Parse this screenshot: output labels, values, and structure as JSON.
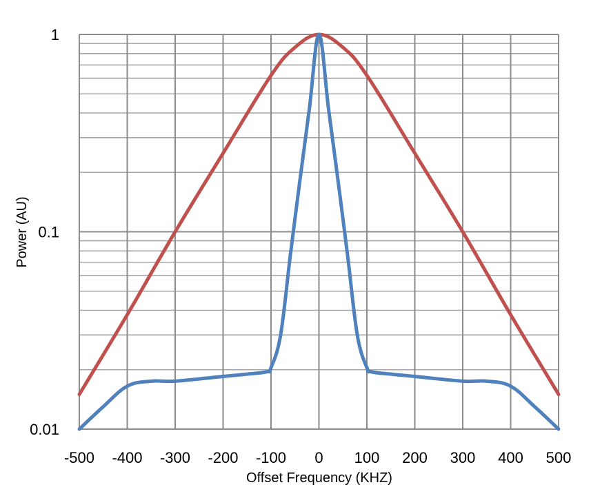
{
  "chart_data": {
    "type": "line",
    "title": "",
    "xlabel": "Offset Frequency (KHZ)",
    "ylabel": "Power (AU)",
    "xlim": [
      -500,
      500
    ],
    "ylim": [
      0.01,
      1
    ],
    "yscale": "log",
    "grid": true,
    "x_ticks": [
      "-500",
      "-400",
      "-300",
      "-200",
      "-100",
      "0",
      "100",
      "200",
      "300",
      "400",
      "500"
    ],
    "x_tick_values": [
      -500,
      -400,
      -300,
      -200,
      -100,
      0,
      100,
      200,
      300,
      400,
      500
    ],
    "y_ticks": [
      "0.01",
      "0.1",
      "1"
    ],
    "y_tick_values": [
      0.01,
      0.1,
      1
    ],
    "series": [
      {
        "color": "#c0504d",
        "x": [
          -500,
          -400,
          -300,
          -200,
          -100,
          -50,
          0,
          50,
          100,
          200,
          300,
          400,
          500
        ],
        "y": [
          0.015,
          0.038,
          0.1,
          0.25,
          0.62,
          0.86,
          1.0,
          0.86,
          0.62,
          0.25,
          0.1,
          0.038,
          0.015
        ]
      },
      {
        "color": "#4f81bd",
        "x": [
          -500,
          -450,
          -400,
          -350,
          -300,
          -200,
          -150,
          -110,
          -100,
          -80,
          -60,
          -40,
          -20,
          0,
          20,
          40,
          60,
          80,
          100,
          110,
          150,
          200,
          300,
          350,
          400,
          450,
          500
        ],
        "y": [
          0.01,
          0.013,
          0.0165,
          0.0175,
          0.0175,
          0.0185,
          0.019,
          0.0195,
          0.0205,
          0.03,
          0.075,
          0.18,
          0.42,
          1.0,
          0.42,
          0.18,
          0.075,
          0.03,
          0.0205,
          0.0195,
          0.019,
          0.0185,
          0.0175,
          0.0175,
          0.0165,
          0.013,
          0.01
        ]
      }
    ]
  }
}
